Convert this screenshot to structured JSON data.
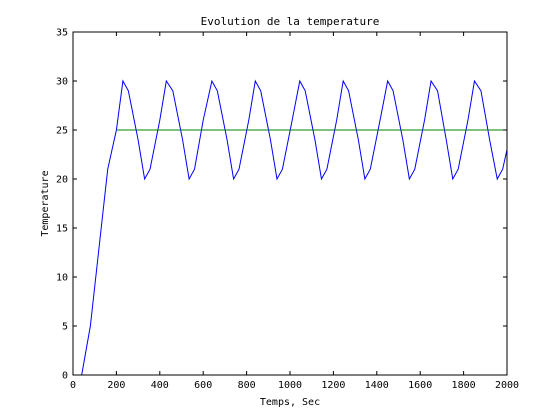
{
  "chart_data": {
    "type": "line",
    "title": "Evolution de la temperature",
    "xlabel": "Temps, Sec",
    "ylabel": "Temperature",
    "xlim": [
      0,
      2000
    ],
    "ylim": [
      0,
      35
    ],
    "xticks": [
      0,
      200,
      400,
      600,
      800,
      1000,
      1200,
      1400,
      1600,
      1800,
      2000
    ],
    "yticks": [
      0,
      5,
      10,
      15,
      20,
      25,
      30,
      35
    ],
    "grid": false,
    "legend": "none",
    "series": [
      {
        "color": "#0000ff",
        "x": [
          40,
          80,
          120,
          160,
          200,
          230,
          255,
          300,
          330,
          355,
          400,
          430,
          460,
          505,
          535,
          560,
          600,
          640,
          665,
          710,
          740,
          765,
          810,
          840,
          865,
          910,
          940,
          965,
          1010,
          1045,
          1070,
          1115,
          1145,
          1170,
          1215,
          1245,
          1270,
          1315,
          1345,
          1370,
          1415,
          1450,
          1475,
          1520,
          1550,
          1575,
          1620,
          1650,
          1680,
          1720,
          1750,
          1775,
          1820,
          1850,
          1880,
          1920,
          1955,
          1980,
          2000
        ],
        "y": [
          0,
          5,
          13,
          21,
          25,
          30,
          29,
          24,
          20,
          21,
          26,
          30,
          29,
          24,
          20,
          21,
          26,
          30,
          29,
          24,
          20,
          21,
          26,
          30,
          29,
          24,
          20,
          21,
          26,
          30,
          29,
          24,
          20,
          21,
          26,
          30,
          29,
          24,
          20,
          21,
          26,
          30,
          29,
          24,
          20,
          21,
          26,
          30,
          29,
          24,
          20,
          21,
          26,
          30,
          29,
          24,
          20,
          21,
          23
        ]
      },
      {
        "color": "#008000",
        "x": [
          200,
          2000
        ],
        "y": [
          25,
          25
        ]
      }
    ]
  }
}
